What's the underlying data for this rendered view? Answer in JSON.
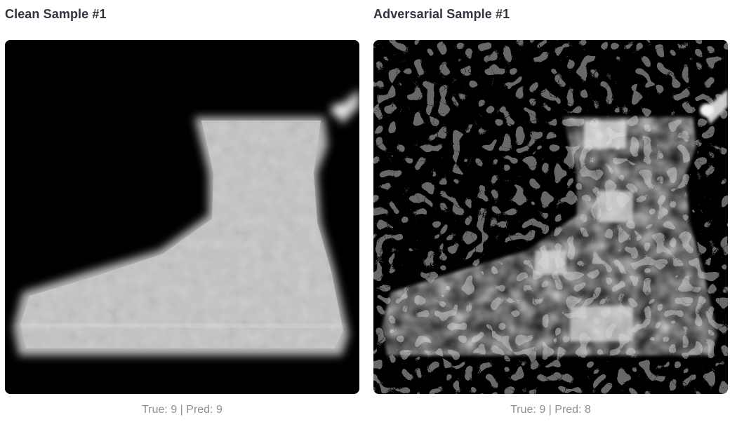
{
  "samples": [
    {
      "title": "Clean Sample #1",
      "caption": "True: 9 | Pred: 9",
      "image_subject": "ankle-boot-grayscale"
    },
    {
      "title": "Adversarial Sample #1",
      "caption": "True: 9 | Pred: 8",
      "image_subject": "ankle-boot-grayscale-perturbed"
    }
  ],
  "colors": {
    "title_text": "#31333f",
    "caption_text": "#8e8f96",
    "image_background": "#000000"
  }
}
